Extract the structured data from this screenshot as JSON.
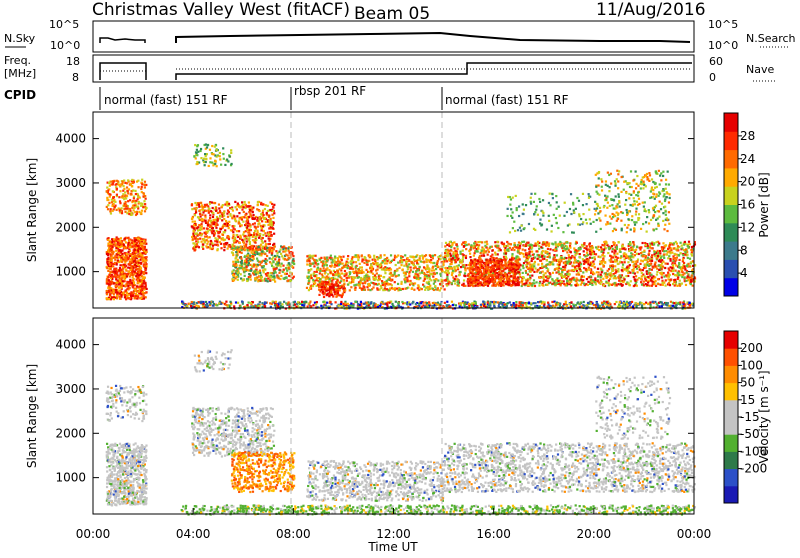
{
  "header": {
    "station": "Christmas Valley West (fitACF)",
    "beam": "Beam 05",
    "date": "11/Aug/2016"
  },
  "chart_data": [
    {
      "type": "line",
      "panel": "noise",
      "left_label": "N.Sky",
      "right_label": "N.Search",
      "left_ticks": [
        "10^5",
        "10^0"
      ],
      "right_ticks": [
        "10^5",
        "10^0"
      ],
      "scale": "log"
    },
    {
      "type": "line",
      "panel": "frequency",
      "left_label_lines": [
        "Freq.",
        "[MHz]"
      ],
      "right_label": "Nave",
      "left_ticks": [
        "18",
        "8"
      ],
      "right_ticks": [
        "60",
        "0"
      ],
      "series": [
        {
          "values": [
            {
              "t": "00:30",
              "v": 14.5
            },
            {
              "t": "02:10",
              "v": 14.5
            },
            {
              "t": "03:40",
              "v": 10
            },
            {
              "t": "15:00",
              "v": 10
            },
            {
              "t": "15:00",
              "v": 14.5
            },
            {
              "t": "24:00",
              "v": 14.5
            }
          ]
        }
      ]
    },
    {
      "type": "table",
      "panel": "cpid",
      "label": "CPID",
      "segments": [
        {
          "start": "00:00",
          "end": "08:00",
          "label": "normal (fast) 151 RF"
        },
        {
          "start": "08:00",
          "end": "14:00",
          "label": "rbsp 201 RF"
        },
        {
          "start": "14:00",
          "end": "24:00",
          "label": "normal (fast) 151 RF"
        }
      ]
    },
    {
      "type": "heatmap",
      "panel": "power",
      "ylabel": "Slant Range [km]",
      "yticks": [
        "1000",
        "2000",
        "3000",
        "4000"
      ],
      "ylim": [
        180,
        4600
      ],
      "colorbar_label": "Power [dB]",
      "colorbar_ticks": [
        "4",
        "8",
        "12",
        "16",
        "20",
        "24",
        "28"
      ],
      "colors": [
        "#0000e6",
        "#2a4fb0",
        "#3c7a8c",
        "#2e8b57",
        "#5dbb3f",
        "#c8d21e",
        "#ffaa00",
        "#ff6a00",
        "#ff2a00",
        "#e60000"
      ]
    },
    {
      "type": "heatmap",
      "panel": "velocity",
      "ylabel": "Slant Range [km]",
      "yticks": [
        "1000",
        "2000",
        "3000",
        "4000"
      ],
      "ylim": [
        180,
        4600
      ],
      "xlabel": "Time UT",
      "xticks": [
        "00:00",
        "04:00",
        "08:00",
        "12:00",
        "16:00",
        "20:00",
        "00:00"
      ],
      "colorbar_label": "Velocity [m s⁻¹]",
      "colorbar_ticks": [
        "200",
        "100",
        "50",
        "15",
        "-15",
        "-50",
        "-100",
        "-200"
      ],
      "colors": [
        "#1a1ab4",
        "#2c50c8",
        "#2e7a4a",
        "#52b030",
        "#c4c4c4",
        "#c4c4c4",
        "#ffc000",
        "#ff8c00",
        "#ff5000",
        "#e60000"
      ]
    }
  ]
}
